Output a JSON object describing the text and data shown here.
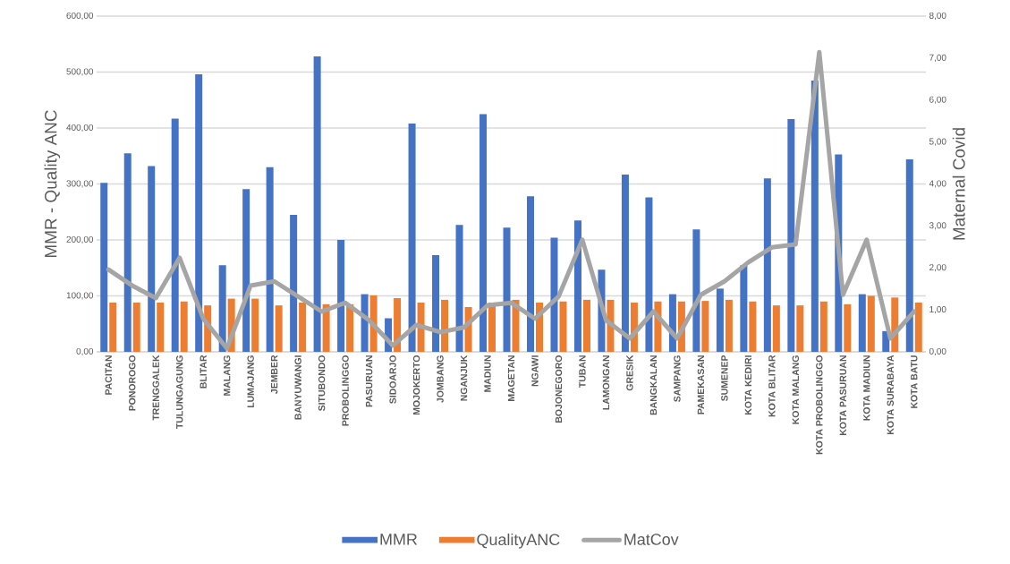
{
  "chart_data": {
    "type": "bar",
    "categories": [
      "PACITAN",
      "PONOROGO",
      "TRENGGALEK",
      "TULUNGAGUNG",
      "BLITAR",
      "MALANG",
      "LUMAJANG",
      "JEMBER",
      "BANYUWANGI",
      "SITUBONDO",
      "PROBOLINGGO",
      "PASURUAN",
      "SIDOARJO",
      "MOJOKERTO",
      "JOMBANG",
      "NGANJUK",
      "MADIUN",
      "MAGETAN",
      "NGAWI",
      "BOJONEGORO",
      "TUBAN",
      "LAMONGAN",
      "GRESIK",
      "BANGKALAN",
      "SAMPANG",
      "PAMEKASAN",
      "SUMENEP",
      "KOTA KEDIRI",
      "KOTA BLITAR",
      "KOTA MALANG",
      "KOTA PROBOLINGGO",
      "KOTA PASURUAN",
      "KOTA MADIUN",
      "KOTA SURABAYA",
      "KOTA BATU"
    ],
    "series": [
      {
        "name": "MMR",
        "color": "#4472c4",
        "values": [
          302,
          355,
          332,
          417,
          496,
          155,
          291,
          330,
          245,
          528,
          200,
          103,
          60,
          408,
          173,
          227,
          425,
          222,
          278,
          204,
          235,
          147,
          317,
          276,
          103,
          219,
          113,
          155,
          310,
          416,
          485,
          353,
          103,
          37,
          344
        ]
      },
      {
        "name": "QualityANC",
        "color": "#ed7d31",
        "values": [
          88,
          88,
          88,
          90,
          83,
          95,
          95,
          83,
          88,
          85,
          85,
          101,
          96,
          88,
          93,
          80,
          88,
          93,
          88,
          90,
          93,
          93,
          88,
          90,
          90,
          91,
          93,
          90,
          83,
          83,
          90,
          85,
          100,
          97,
          88
        ]
      },
      {
        "name": "MatCov",
        "type": "line",
        "axis": "y2",
        "color": "#a5a5a5",
        "values": [
          1.96,
          1.58,
          1.28,
          2.24,
          0.79,
          0.08,
          1.58,
          1.68,
          1.32,
          0.96,
          1.17,
          0.75,
          0.15,
          0.64,
          0.47,
          0.58,
          1.11,
          1.17,
          0.79,
          1.32,
          2.67,
          0.75,
          0.32,
          0.96,
          0.32,
          1.36,
          1.68,
          2.13,
          2.49,
          2.56,
          7.14,
          1.36,
          2.67,
          0.32,
          0.96
        ]
      }
    ],
    "ylabel": "MMR - Quality ANC",
    "y2label": "Maternal Covid",
    "ylim": [
      0,
      600
    ],
    "yticks": [
      {
        "value": 0,
        "label": "0,00"
      },
      {
        "value": 100,
        "label": "100,00"
      },
      {
        "value": 200,
        "label": "200,00"
      },
      {
        "value": 300,
        "label": "300,00"
      },
      {
        "value": 400,
        "label": "400,00"
      },
      {
        "value": 500,
        "label": "500,00"
      },
      {
        "value": 600,
        "label": "600,00"
      }
    ],
    "y2lim": [
      0,
      8
    ],
    "y2ticks": [
      {
        "value": 0,
        "label": "0,00"
      },
      {
        "value": 1,
        "label": "1,00"
      },
      {
        "value": 2,
        "label": "2,00"
      },
      {
        "value": 3,
        "label": "3,00"
      },
      {
        "value": 4,
        "label": "4,00"
      },
      {
        "value": 5,
        "label": "5,00"
      },
      {
        "value": 6,
        "label": "6,00"
      },
      {
        "value": 7,
        "label": "7,00"
      },
      {
        "value": 8,
        "label": "8,00"
      }
    ],
    "grid": "y",
    "legend": "bottom",
    "marker": "none",
    "line_style": "solid"
  }
}
